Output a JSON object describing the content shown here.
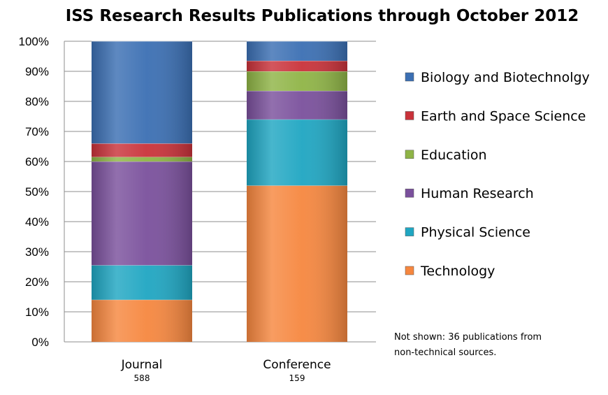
{
  "chart_data": {
    "type": "bar",
    "stacked": true,
    "normalized": true,
    "title": "ISS Research Results Publications  through October 2012",
    "categories": [
      "Journal",
      "Conference"
    ],
    "category_counts": [
      "588",
      "159"
    ],
    "ylim": [
      0,
      100
    ],
    "y_ticks": [
      "0%",
      "10%",
      "20%",
      "30%",
      "40%",
      "50%",
      "60%",
      "70%",
      "80%",
      "90%",
      "100%"
    ],
    "grid": true,
    "legend_position": "right",
    "series": [
      {
        "name": "Technology",
        "color": "#f6873f",
        "values": [
          14,
          52
        ]
      },
      {
        "name": "Physical Science",
        "color": "#1fa6c2",
        "values": [
          11.5,
          22
        ]
      },
      {
        "name": "Human Research",
        "color": "#7a509c",
        "values": [
          34.5,
          9.5
        ]
      },
      {
        "name": "Education",
        "color": "#8fb446",
        "values": [
          1.5,
          6.5
        ]
      },
      {
        "name": "Earth and Space Science",
        "color": "#c9323a",
        "values": [
          4.5,
          3.5
        ]
      },
      {
        "name": "Biology and Biotechnolgy",
        "color": "#3b6fb3",
        "values": [
          34,
          6.5
        ]
      }
    ],
    "legend_order": [
      "Biology and Biotechnolgy",
      "Earth and Space Science",
      "Education",
      "Human Research",
      "Physical Science",
      "Technology"
    ],
    "note_lines": [
      "Not shown: 36 publications from",
      "non-technical sources."
    ]
  }
}
